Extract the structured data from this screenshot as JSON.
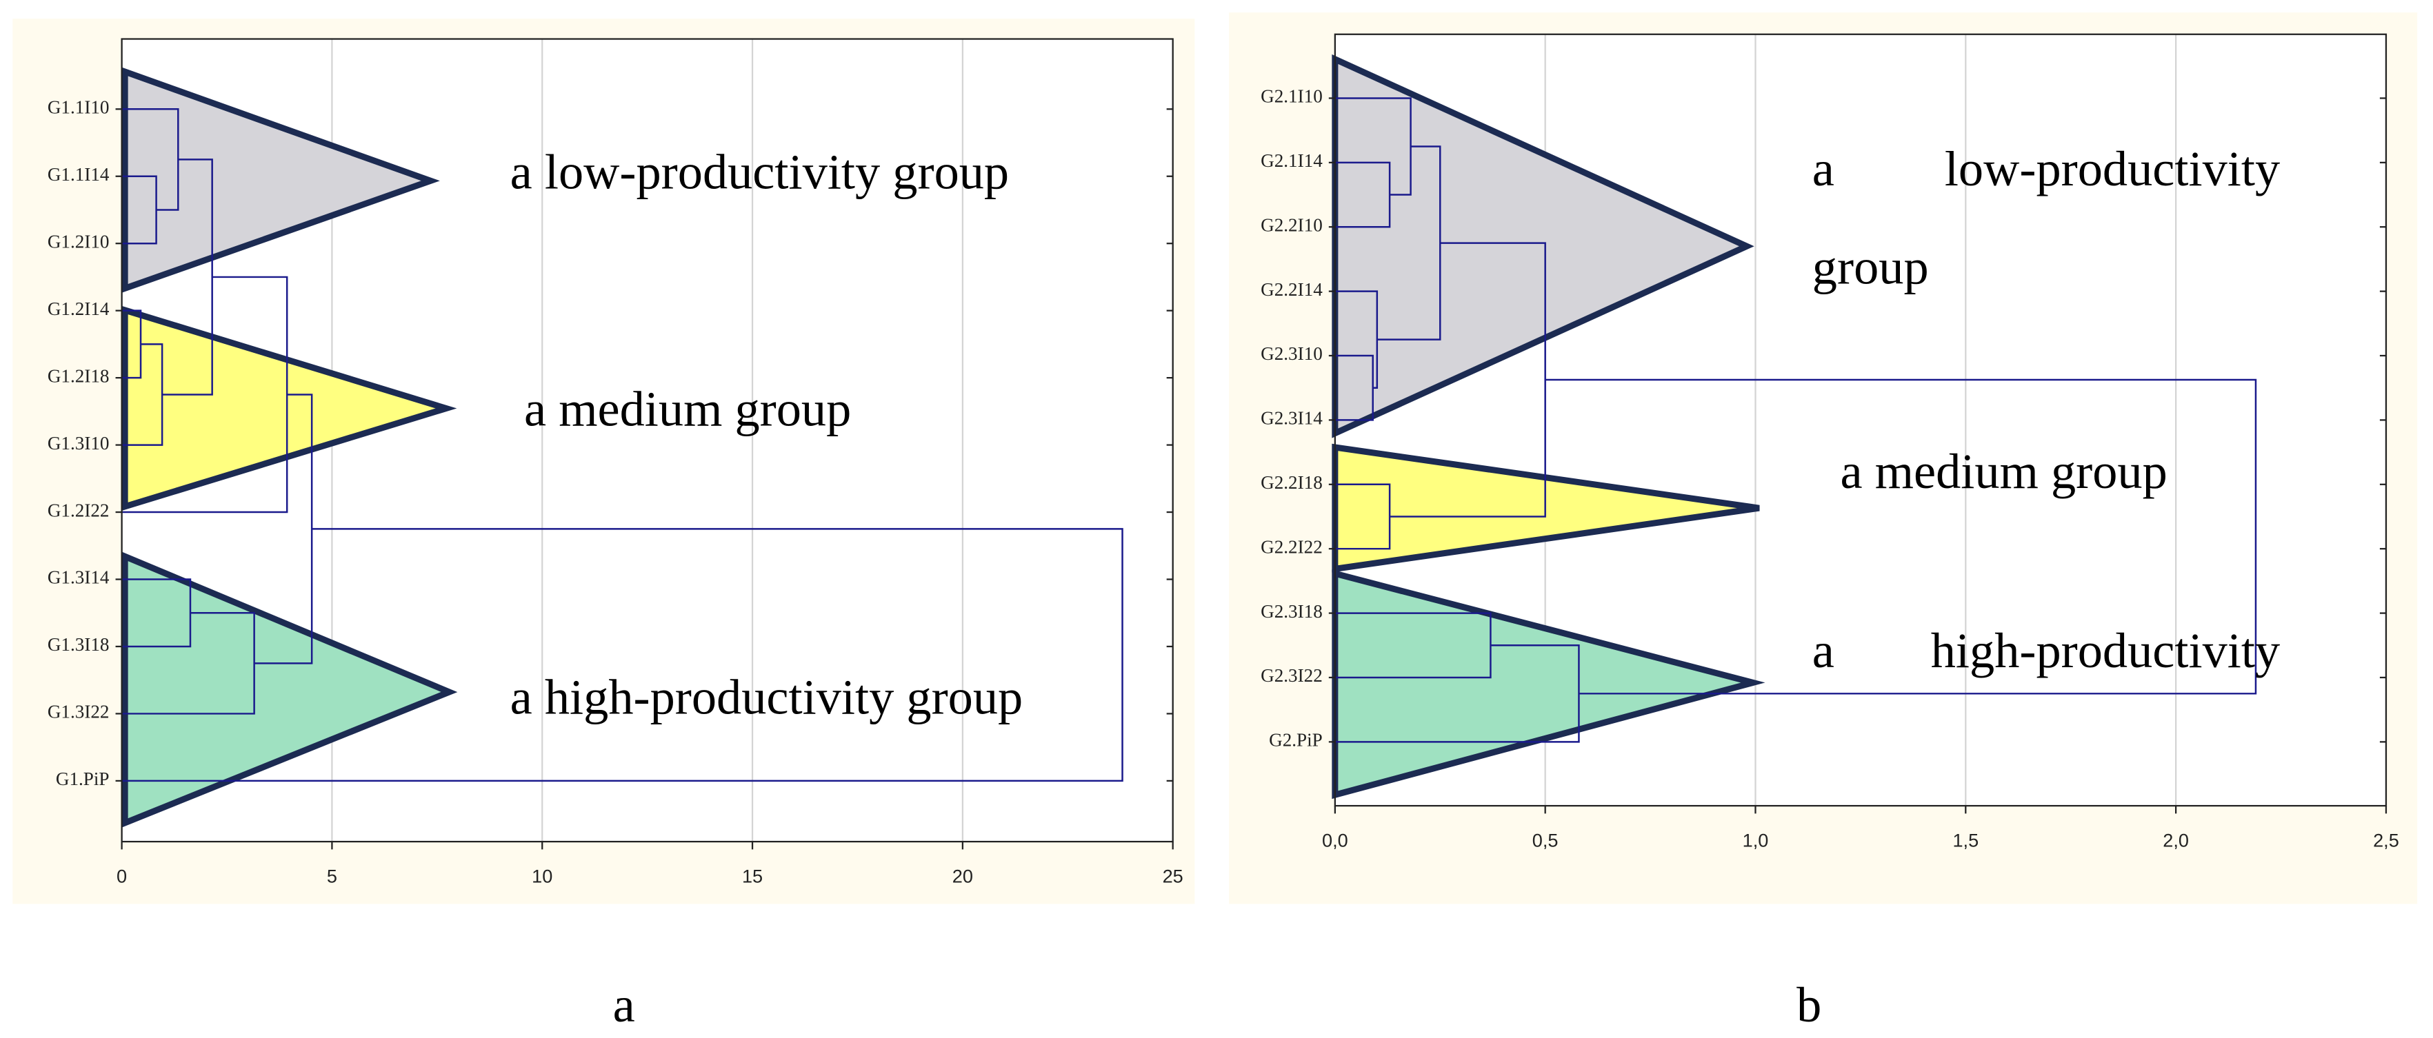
{
  "chart_data": [
    {
      "type": "dendrogram",
      "leaves": [
        "G1.1I10",
        "G1.1I14",
        "G1.2I10",
        "G1.2I14",
        "G1.2I18",
        "G1.3I10",
        "G1.2I22",
        "G1.3I14",
        "G1.3I18",
        "G1.3I22",
        "G1.PiP"
      ],
      "merges": [
        {
          "children": [
            1,
            2
          ],
          "height": 0.82
        },
        {
          "children": [
            0,
            11
          ],
          "height": 1.34
        },
        {
          "children": [
            3,
            4
          ],
          "height": 0.45
        },
        {
          "children": [
            13,
            5
          ],
          "height": 0.96
        },
        {
          "children": [
            12,
            14
          ],
          "height": 2.15
        },
        {
          "children": [
            15,
            6
          ],
          "height": 3.93
        },
        {
          "children": [
            7,
            8
          ],
          "height": 1.63
        },
        {
          "children": [
            17,
            9
          ],
          "height": 3.15
        },
        {
          "children": [
            16,
            18
          ],
          "height": 4.52
        },
        {
          "children": [
            19,
            10
          ],
          "height": 23.8
        }
      ],
      "xlim": [
        0,
        25
      ],
      "xticks": [
        0,
        5,
        10,
        15,
        20,
        25
      ],
      "grid": true,
      "line_color": "#1a1a8c",
      "groups": [
        {
          "text": "a low-productivity group",
          "color": "#d5d4d9"
        },
        {
          "text": "a medium group",
          "color": "#ffff80"
        },
        {
          "text": "a high-productivity group",
          "color": "#9fe1c1"
        }
      ],
      "caption": "a"
    },
    {
      "type": "dendrogram",
      "leaves": [
        "G2.1I10",
        "G2.1I14",
        "G2.2I10",
        "G2.2I14",
        "G2.3I10",
        "G2.3I14",
        "G2.2I18",
        "G2.2I22",
        "G2.3I18",
        "G2.3I22",
        "G2.PiP"
      ],
      "merges": [
        {
          "children": [
            1,
            2
          ],
          "height": 0.13
        },
        {
          "children": [
            0,
            11
          ],
          "height": 0.18
        },
        {
          "children": [
            4,
            5
          ],
          "height": 0.09
        },
        {
          "children": [
            3,
            13
          ],
          "height": 0.1
        },
        {
          "children": [
            12,
            14
          ],
          "height": 0.25
        },
        {
          "children": [
            6,
            7
          ],
          "height": 0.13
        },
        {
          "children": [
            15,
            16
          ],
          "height": 0.5
        },
        {
          "children": [
            8,
            9
          ],
          "height": 0.37
        },
        {
          "children": [
            18,
            10
          ],
          "height": 0.58
        },
        {
          "children": [
            17,
            19
          ],
          "height": 2.19
        }
      ],
      "xlim": [
        0,
        2.5
      ],
      "xticks": [
        {
          "value": 0,
          "label": "0,0"
        },
        {
          "value": 0.5,
          "label": "0,5"
        },
        {
          "value": 1,
          "label": "1,0"
        },
        {
          "value": 1.5,
          "label": "1,5"
        },
        {
          "value": 2,
          "label": "2,0"
        },
        {
          "value": 2.5,
          "label": "2,5"
        }
      ],
      "grid": true,
      "line_color": "#1a1a8c",
      "groups": [
        {
          "text": "a low-productivity group",
          "color": "#d5d4d9"
        },
        {
          "text": "a medium group",
          "color": "#ffff80"
        },
        {
          "text": "a high-productivity",
          "color": "#9fe1c1"
        }
      ],
      "caption": "b"
    }
  ]
}
